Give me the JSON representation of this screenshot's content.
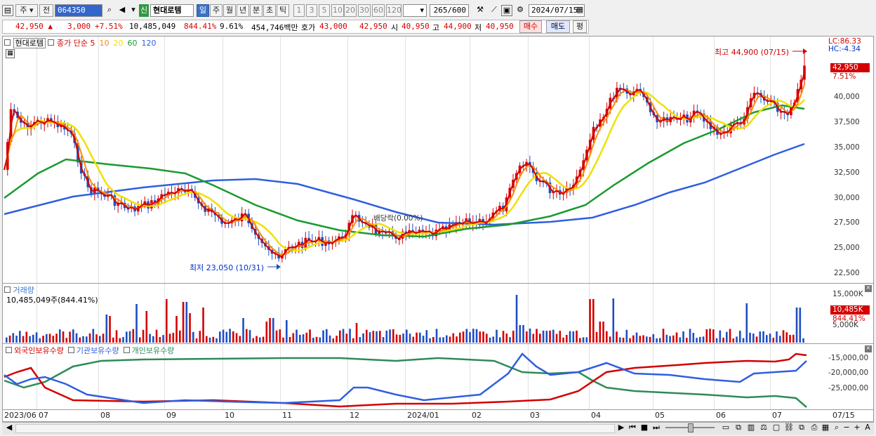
{
  "toolbar": {
    "market": "주",
    "prev": "전",
    "code": "064350",
    "stock_badge": "신",
    "stock_name": "현대로템",
    "periods": [
      "일",
      "주",
      "월",
      "년",
      "분",
      "초",
      "틱"
    ],
    "minutes": [
      "1",
      "3",
      "5",
      "10",
      "20",
      "30",
      "60",
      "120"
    ],
    "count": "265",
    "count_total": "/600",
    "date": "2024/07/15"
  },
  "quote": {
    "price": "42,950 ▲",
    "change": "3,000",
    "change_pct": "+7.51%",
    "volume": "10,485,049",
    "volume_ratio": "844.41%",
    "turnover": "9.61%",
    "amount": "454,746백만",
    "hoga_label": "호가",
    "hoga_value": "43,000",
    "hoga_value2": "42,950",
    "open_label": "시",
    "open": "40,950",
    "high_label": "고",
    "high": "44,900",
    "low_label": "저",
    "low": "40,950",
    "buy": "매수",
    "sell": "매도",
    "eval": "평"
  },
  "price_panel": {
    "stock_label": "현대로템",
    "ma_label": "종가 단순",
    "ma_periods": [
      "5",
      "10",
      "20",
      "60",
      "120"
    ],
    "ma_colors": [
      "#d40000",
      "#ff8c00",
      "#f0e000",
      "#1a9a30",
      "#2f5fe0"
    ],
    "lc": "LC:86.33",
    "hc": "HC:-4.34",
    "high_note": "최고 44,900 (07/15)",
    "low_note": "최저 23,050 (10/31)",
    "dividend_note": "배당락(0.00%)",
    "price_tag": "42,950",
    "pct_tag": "7.51%",
    "y_ticks": [
      "40,000",
      "37,500",
      "35,000",
      "32,500",
      "30,000",
      "27,500",
      "25,000",
      "22,500"
    ]
  },
  "volume_panel": {
    "title": "거래량",
    "value": "10,485,049주(844.41%)",
    "y_ticks": [
      "15,000K",
      "5,000K"
    ],
    "tag_value": "10,485K",
    "tag_pct": "844.41%"
  },
  "holder_panel": {
    "series": [
      "외국인보유수량",
      "기관보유수량",
      "개인보유수량"
    ],
    "colors": [
      "#d40000",
      "#2f5fe0",
      "#2e8b57"
    ],
    "y_ticks": [
      "-15,000,00",
      "-20,000,00",
      "-25,000,00"
    ]
  },
  "x_axis": [
    "2023/06",
    "07",
    "08",
    "09",
    "10",
    "11",
    "12",
    "2024/01",
    "02",
    "03",
    "04",
    "05",
    "06",
    "07",
    "07/15"
  ]
}
